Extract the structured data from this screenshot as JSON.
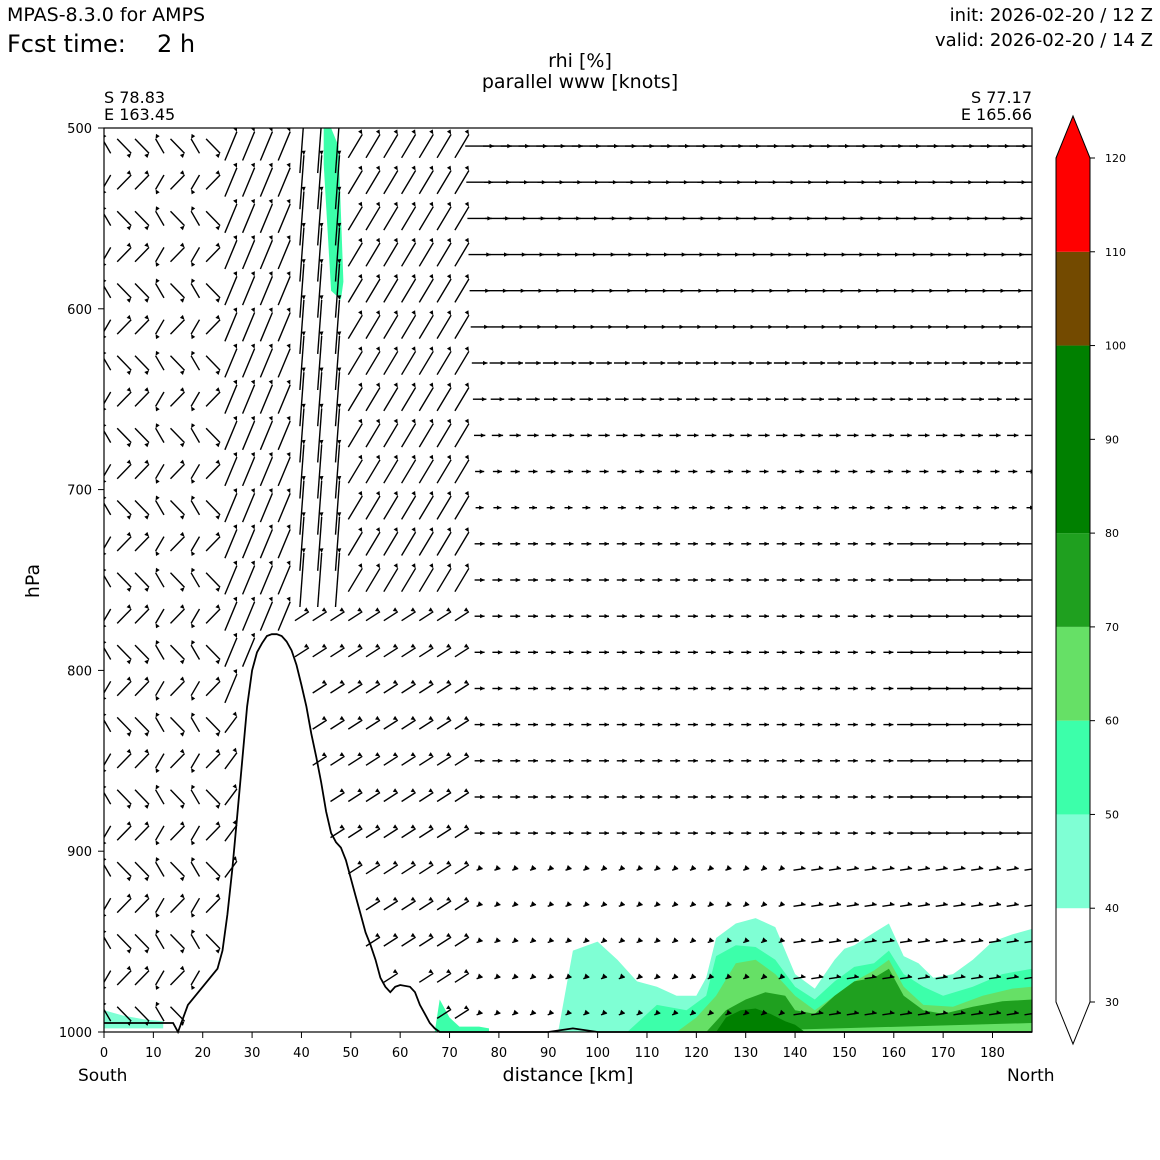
{
  "header": {
    "model": "MPAS-8.3.0 for AMPS",
    "fcst_label": "Fcst time:",
    "fcst_value": "2 h",
    "init": "init: 2026-02-20 / 12 Z",
    "valid": "valid: 2026-02-20 / 14 Z"
  },
  "chart_data": {
    "type": "cross-section",
    "title": "rhi [%]",
    "subtitle": "parallel www [knots]",
    "xlabel": "distance [km]",
    "ylabel": "hPa",
    "left_end": {
      "lat": "S 78.83",
      "lon": "E 163.45",
      "label": "South"
    },
    "right_end": {
      "lat": "S 77.17",
      "lon": "E 165.66",
      "label": "North"
    },
    "xlim": [
      0,
      188
    ],
    "ylim": [
      1000,
      500
    ],
    "xticks": [
      "0",
      "10",
      "20",
      "30",
      "40",
      "50",
      "60",
      "70",
      "80",
      "90",
      "100",
      "110",
      "120",
      "130",
      "140",
      "150",
      "160",
      "170",
      "180"
    ],
    "yticks": [
      "500",
      "600",
      "700",
      "800",
      "900",
      "1000"
    ],
    "colorbar": {
      "ticks": [
        "30",
        "40",
        "50",
        "60",
        "70",
        "80",
        "90",
        "100",
        "110",
        "120"
      ],
      "bands": [
        {
          "from": 30,
          "to": 40,
          "color": "#ffffff"
        },
        {
          "from": 40,
          "to": 50,
          "color": "#7fffd4"
        },
        {
          "from": 50,
          "to": 60,
          "color": "#3cffaa"
        },
        {
          "from": 60,
          "to": 70,
          "color": "#66e066"
        },
        {
          "from": 70,
          "to": 80,
          "color": "#1fa01f"
        },
        {
          "from": 80,
          "to": 100,
          "color": "#008000"
        },
        {
          "from": 100,
          "to": 110,
          "color": "#734a00"
        },
        {
          "from": 110,
          "to": 120,
          "color": "#ff0000"
        }
      ]
    },
    "terrain": {
      "km": [
        0,
        14,
        15,
        17,
        20,
        23,
        24,
        25,
        26,
        27,
        28,
        29,
        30,
        31,
        32,
        33,
        34,
        35,
        36,
        37,
        38,
        39,
        40,
        41,
        42,
        43,
        44,
        45,
        46,
        47,
        48,
        49,
        50,
        51,
        52,
        53,
        54,
        55,
        56,
        57,
        58,
        59,
        60,
        62,
        63,
        64,
        65,
        66,
        67,
        68,
        69,
        70,
        90,
        95,
        100,
        188
      ],
      "hPa": [
        995,
        995,
        1000,
        985,
        975,
        965,
        955,
        935,
        910,
        880,
        850,
        820,
        800,
        790,
        785,
        781,
        780,
        780,
        781,
        784,
        789,
        797,
        808,
        820,
        835,
        848,
        862,
        878,
        890,
        895,
        898,
        905,
        915,
        925,
        935,
        945,
        952,
        960,
        970,
        975,
        978,
        975,
        974,
        975,
        978,
        985,
        990,
        995,
        998,
        1000,
        1000,
        1000,
        1000,
        998,
        1000,
        1000
      ]
    },
    "rhi_regions": [
      {
        "level": 45,
        "km": [
          92,
          95,
          100,
          104,
          108,
          112,
          116,
          120,
          122,
          124,
          128,
          132,
          136,
          140,
          144,
          148,
          150,
          152,
          156,
          159,
          162,
          165,
          168,
          172,
          176,
          180,
          184,
          188,
          188,
          92
        ],
        "hPa": [
          1000,
          955,
          950,
          960,
          972,
          975,
          980,
          980,
          970,
          948,
          940,
          937,
          942,
          968,
          976,
          960,
          954,
          952,
          945,
          940,
          958,
          962,
          970,
          968,
          960,
          950,
          946,
          943,
          1000,
          1000
        ]
      },
      {
        "level": 55,
        "km": [
          106,
          112,
          118,
          122,
          124,
          128,
          132,
          136,
          140,
          144,
          148,
          152,
          156,
          159,
          162,
          166,
          170,
          176,
          182,
          188,
          188,
          106
        ],
        "hPa": [
          1000,
          985,
          988,
          980,
          958,
          952,
          953,
          960,
          975,
          982,
          972,
          964,
          962,
          955,
          968,
          975,
          980,
          975,
          968,
          965,
          1000,
          1000
        ]
      },
      {
        "level": 65,
        "km": [
          116,
          120,
          124,
          128,
          132,
          136,
          140,
          144,
          148,
          152,
          156,
          159,
          162,
          166,
          172,
          178,
          184,
          188,
          188,
          116
        ],
        "hPa": [
          1000,
          992,
          980,
          962,
          960,
          968,
          980,
          988,
          980,
          972,
          966,
          960,
          975,
          985,
          986,
          980,
          976,
          975,
          1000,
          1000
        ]
      },
      {
        "level": 75,
        "km": [
          122,
          126,
          130,
          134,
          138,
          140,
          144,
          148,
          152,
          156,
          159,
          162,
          166,
          170,
          176,
          182,
          188,
          188,
          122
        ],
        "hPa": [
          1000,
          988,
          982,
          978,
          980,
          988,
          990,
          980,
          972,
          970,
          965,
          980,
          988,
          990,
          986,
          983,
          982,
          995,
          1000
        ]
      },
      {
        "level": 85,
        "km": [
          124,
          126,
          129,
          132,
          135,
          138,
          140,
          142,
          140,
          134,
          128,
          124
        ],
        "hPa": [
          1000,
          992,
          988,
          987,
          990,
          994,
          996,
          1000,
          1000,
          1000,
          1000,
          1000
        ]
      },
      {
        "level": 45,
        "km": [
          0,
          4,
          8,
          12,
          12,
          0
        ],
        "hPa": [
          988,
          991,
          993,
          994,
          998,
          998
        ]
      },
      {
        "level": 50,
        "km": [
          67,
          68,
          70,
          72,
          76,
          78,
          78,
          67
        ],
        "hPa": [
          1000,
          982,
          992,
          997,
          997,
          998,
          1000,
          1000
        ]
      },
      {
        "level": 55,
        "km": [
          44.5,
          46,
          47.5,
          48.5,
          48,
          46,
          44.5
        ],
        "hPa": [
          500,
          500,
          510,
          585,
          595,
          590,
          520
        ]
      }
    ],
    "wind_note": "parallel wind vectors in knots"
  },
  "colors": {
    "axis": "#000000",
    "terrain_line": "#000000"
  }
}
